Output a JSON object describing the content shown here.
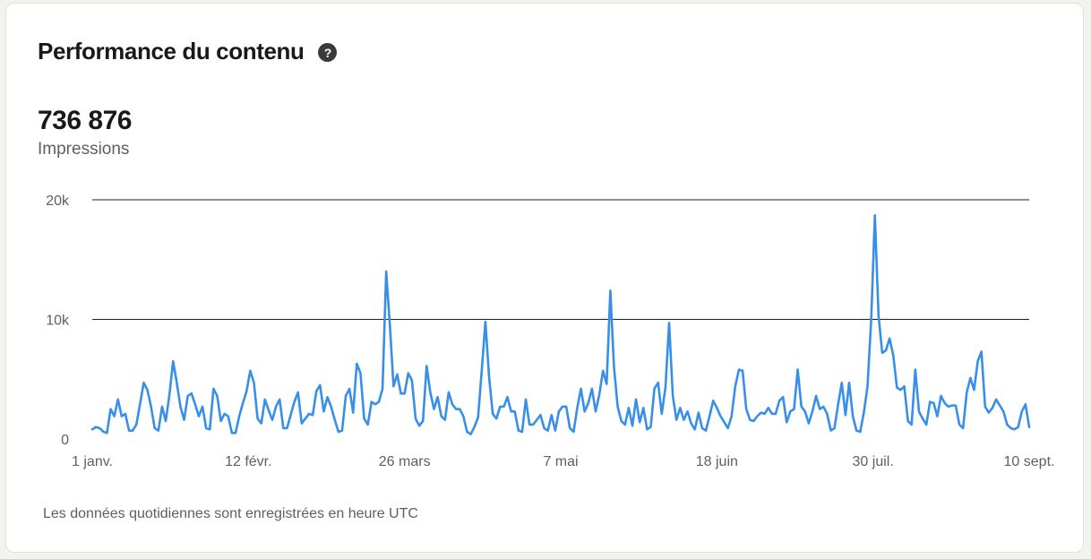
{
  "card": {
    "title": "Performance du contenu",
    "help_icon": "question-circle-icon",
    "help_glyph": "?",
    "metric_value": "736 876",
    "metric_label": "Impressions",
    "footnote": "Les données quotidiennes sont enregistrées en heure UTC"
  },
  "chart_data": {
    "type": "line",
    "title": "",
    "xlabel": "",
    "ylabel": "",
    "ylim": [
      0,
      20000
    ],
    "y_ticks": [
      {
        "value": 0,
        "label": "0"
      },
      {
        "value": 10000,
        "label": "10k"
      },
      {
        "value": 20000,
        "label": "20k"
      }
    ],
    "x_ticks": [
      "1 janv.",
      "12 févr.",
      "26 mars",
      "7 mai",
      "18 juin",
      "30 juil.",
      "10 sept."
    ],
    "x_start": "1 janv.",
    "x_end": "10 sept.",
    "grid": true,
    "line_color": "#378fe9",
    "series": [
      {
        "name": "",
        "values": [
          800,
          1000,
          900,
          600,
          500,
          2500,
          1900,
          3300,
          1900,
          2100,
          700,
          700,
          1200,
          2900,
          4700,
          4100,
          2700,
          900,
          700,
          2700,
          1500,
          3700,
          6500,
          4700,
          2700,
          1600,
          3600,
          3800,
          2900,
          1900,
          2700,
          900,
          800,
          4200,
          3600,
          1500,
          2100,
          1900,
          500,
          500,
          1900,
          3000,
          4000,
          5700,
          4700,
          1700,
          1300,
          3300,
          2400,
          1600,
          2700,
          3300,
          900,
          900,
          2000,
          3100,
          3900,
          1300,
          1700,
          2100,
          2000,
          4000,
          4500,
          2300,
          3500,
          2700,
          1600,
          600,
          700,
          3600,
          4200,
          2200,
          6300,
          5500,
          1700,
          1200,
          3100,
          2900,
          3100,
          4200,
          14000,
          9500,
          4400,
          5400,
          3800,
          3800,
          5500,
          4900,
          1700,
          1100,
          1500,
          6100,
          3900,
          2500,
          3500,
          1900,
          1600,
          3900,
          2900,
          2500,
          2500,
          1900,
          600,
          400,
          1000,
          1800,
          5700,
          9800,
          5200,
          2100,
          1700,
          2700,
          2700,
          3500,
          2300,
          2300,
          700,
          600,
          3300,
          1200,
          1200,
          1600,
          2000,
          900,
          700,
          2000,
          700,
          2300,
          2700,
          2700,
          900,
          600,
          2600,
          4200,
          2300,
          3000,
          4200,
          2300,
          3700,
          5700,
          4600,
          12400,
          6000,
          2700,
          1500,
          1200,
          2600,
          1100,
          3300,
          1400,
          2600,
          800,
          1000,
          4200,
          4700,
          2100,
          4300,
          9700,
          3600,
          1600,
          2600,
          1600,
          2300,
          1300,
          800,
          2200,
          900,
          700,
          1900,
          3200,
          2600,
          1900,
          1400,
          900,
          1900,
          4400,
          5800,
          5700,
          2500,
          1600,
          1500,
          1900,
          2200,
          2100,
          2600,
          2100,
          2100,
          3200,
          3500,
          1400,
          2300,
          2500,
          5800,
          2700,
          2300,
          1300,
          2300,
          3600,
          2500,
          2700,
          2100,
          700,
          900,
          2900,
          4700,
          2000,
          4700,
          1900,
          700,
          600,
          2200,
          4400,
          10000,
          18700,
          10300,
          7200,
          7400,
          8400,
          7000,
          4300,
          4100,
          4400,
          1500,
          1200,
          5800,
          2300,
          1700,
          1200,
          3100,
          3000,
          1900,
          3600,
          3000,
          2700,
          2800,
          2800,
          1200,
          900,
          3900,
          5100,
          4100,
          6500,
          7300,
          2700,
          2200,
          2600,
          3300,
          2800,
          2300,
          1200,
          900,
          800,
          1000,
          2300,
          2900,
          1000
        ]
      }
    ]
  }
}
